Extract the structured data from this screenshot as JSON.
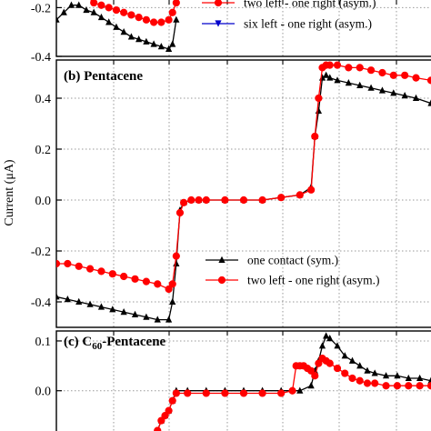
{
  "chart_data": [
    {
      "type": "line",
      "panel": "a",
      "ylim": [
        -0.4,
        -0.15
      ],
      "yticks": [
        -0.2,
        -0.4
      ],
      "xlim": [
        0,
        100
      ],
      "legend": {
        "placement": "top-right"
      },
      "series": [
        {
          "name": "",
          "color": "#000000",
          "marker": "triangle",
          "x": [
            0,
            2,
            4,
            6,
            8,
            10,
            12,
            14,
            16,
            18,
            20,
            22,
            24,
            26,
            28,
            30,
            31,
            32
          ],
          "y": [
            -0.25,
            -0.22,
            -0.19,
            -0.19,
            -0.21,
            -0.22,
            -0.24,
            -0.26,
            -0.28,
            -0.3,
            -0.32,
            -0.33,
            -0.34,
            -0.35,
            -0.36,
            -0.37,
            -0.35,
            -0.25
          ]
        },
        {
          "name": "two left - one right (asym.)",
          "color": "#ff0000",
          "marker": "circle",
          "x": [
            8,
            10,
            12,
            14,
            16,
            18,
            20,
            22,
            24,
            26,
            28,
            30,
            31,
            32
          ],
          "y": [
            -0.15,
            -0.18,
            -0.19,
            -0.2,
            -0.21,
            -0.22,
            -0.23,
            -0.24,
            -0.25,
            -0.26,
            -0.26,
            -0.25,
            -0.22,
            -0.18
          ]
        },
        {
          "name": "six left - one right (asym.)",
          "color": "#0000cc",
          "marker": "triangle-down",
          "x": [],
          "y": []
        }
      ]
    },
    {
      "type": "line",
      "panel": "b",
      "title": "(b) Pentacene",
      "ylabel": "Current (μA)",
      "ylim": [
        -0.5,
        0.55
      ],
      "yticks": [
        0.4,
        0.2,
        0.0,
        -0.2,
        -0.4
      ],
      "ytick_labels": [
        "0.4",
        "0.2",
        "0.0",
        "-0.2",
        "-0.4"
      ],
      "xlim": [
        0,
        100
      ],
      "legend": {
        "placement": "lower-right"
      },
      "series": [
        {
          "name": "one contact (sym.)",
          "color": "#000000",
          "marker": "triangle",
          "x": [
            0,
            3,
            6,
            9,
            12,
            15,
            18,
            21,
            24,
            27,
            30,
            31,
            32,
            33,
            34,
            36,
            38,
            40,
            45,
            50,
            55,
            60,
            65,
            68,
            69,
            70,
            71,
            72,
            73,
            75,
            78,
            81,
            84,
            87,
            90,
            93,
            96,
            100
          ],
          "y": [
            -0.38,
            -0.39,
            -0.4,
            -0.41,
            -0.42,
            -0.43,
            -0.44,
            -0.45,
            -0.46,
            -0.47,
            -0.47,
            -0.4,
            -0.25,
            -0.04,
            -0.01,
            0.0,
            0.0,
            0.0,
            0.0,
            0.0,
            0.0,
            0.01,
            0.02,
            0.05,
            0.25,
            0.35,
            0.48,
            0.49,
            0.48,
            0.47,
            0.46,
            0.45,
            0.44,
            0.43,
            0.42,
            0.41,
            0.4,
            0.38
          ]
        },
        {
          "name": "two left - one right (asym.)",
          "color": "#ff0000",
          "marker": "circle",
          "x": [
            0,
            3,
            6,
            9,
            12,
            15,
            18,
            21,
            24,
            27,
            30,
            31,
            32,
            33,
            34,
            36,
            38,
            40,
            45,
            50,
            55,
            60,
            65,
            68,
            69,
            70,
            71,
            72,
            73,
            75,
            78,
            81,
            84,
            87,
            90,
            93,
            96,
            100
          ],
          "y": [
            -0.25,
            -0.25,
            -0.26,
            -0.27,
            -0.28,
            -0.29,
            -0.3,
            -0.31,
            -0.32,
            -0.33,
            -0.35,
            -0.33,
            -0.22,
            -0.05,
            -0.01,
            0.0,
            0.0,
            0.0,
            0.0,
            0.0,
            0.0,
            0.01,
            0.02,
            0.04,
            0.25,
            0.4,
            0.52,
            0.53,
            0.53,
            0.53,
            0.52,
            0.52,
            0.51,
            0.5,
            0.49,
            0.49,
            0.48,
            0.47
          ]
        }
      ]
    },
    {
      "type": "line",
      "panel": "c",
      "title": "(c) C60-Pentacene",
      "ylim": [
        -0.09,
        0.12
      ],
      "yticks": [
        0.1,
        0.0
      ],
      "ytick_labels": [
        "0.1",
        "0.0"
      ],
      "xlim": [
        0,
        100
      ],
      "series": [
        {
          "name": "",
          "color": "#000000",
          "marker": "triangle",
          "x": [
            26,
            27,
            28,
            29,
            30,
            31,
            32,
            35,
            40,
            45,
            50,
            55,
            60,
            65,
            68,
            69,
            70,
            71,
            72,
            73,
            75,
            77,
            79,
            81,
            83,
            85,
            88,
            91,
            94,
            97,
            100
          ],
          "y": [
            -0.09,
            -0.08,
            -0.06,
            -0.05,
            -0.04,
            -0.02,
            0.0,
            0.0,
            0.0,
            0.0,
            0.0,
            0.0,
            0.0,
            0.0,
            0.01,
            0.04,
            0.06,
            0.09,
            0.11,
            0.105,
            0.09,
            0.07,
            0.06,
            0.05,
            0.04,
            0.035,
            0.03,
            0.03,
            0.025,
            0.025,
            0.02
          ]
        },
        {
          "name": "",
          "color": "#ff0000",
          "marker": "circle",
          "x": [
            26,
            27,
            28,
            29,
            30,
            31,
            32,
            35,
            40,
            45,
            50,
            55,
            60,
            63,
            64,
            65,
            66,
            67,
            68,
            69,
            70,
            71,
            72,
            73,
            75,
            77,
            79,
            81,
            83,
            85,
            88,
            91,
            94,
            97,
            100
          ],
          "y": [
            -0.09,
            -0.08,
            -0.06,
            -0.05,
            -0.04,
            -0.02,
            -0.005,
            -0.005,
            -0.005,
            -0.005,
            -0.005,
            -0.005,
            -0.005,
            0.0,
            0.05,
            0.05,
            0.05,
            0.045,
            0.04,
            0.03,
            0.055,
            0.065,
            0.06,
            0.055,
            0.045,
            0.035,
            0.025,
            0.02,
            0.015,
            0.015,
            0.01,
            0.01,
            0.01,
            0.01,
            0.01
          ]
        }
      ]
    }
  ]
}
